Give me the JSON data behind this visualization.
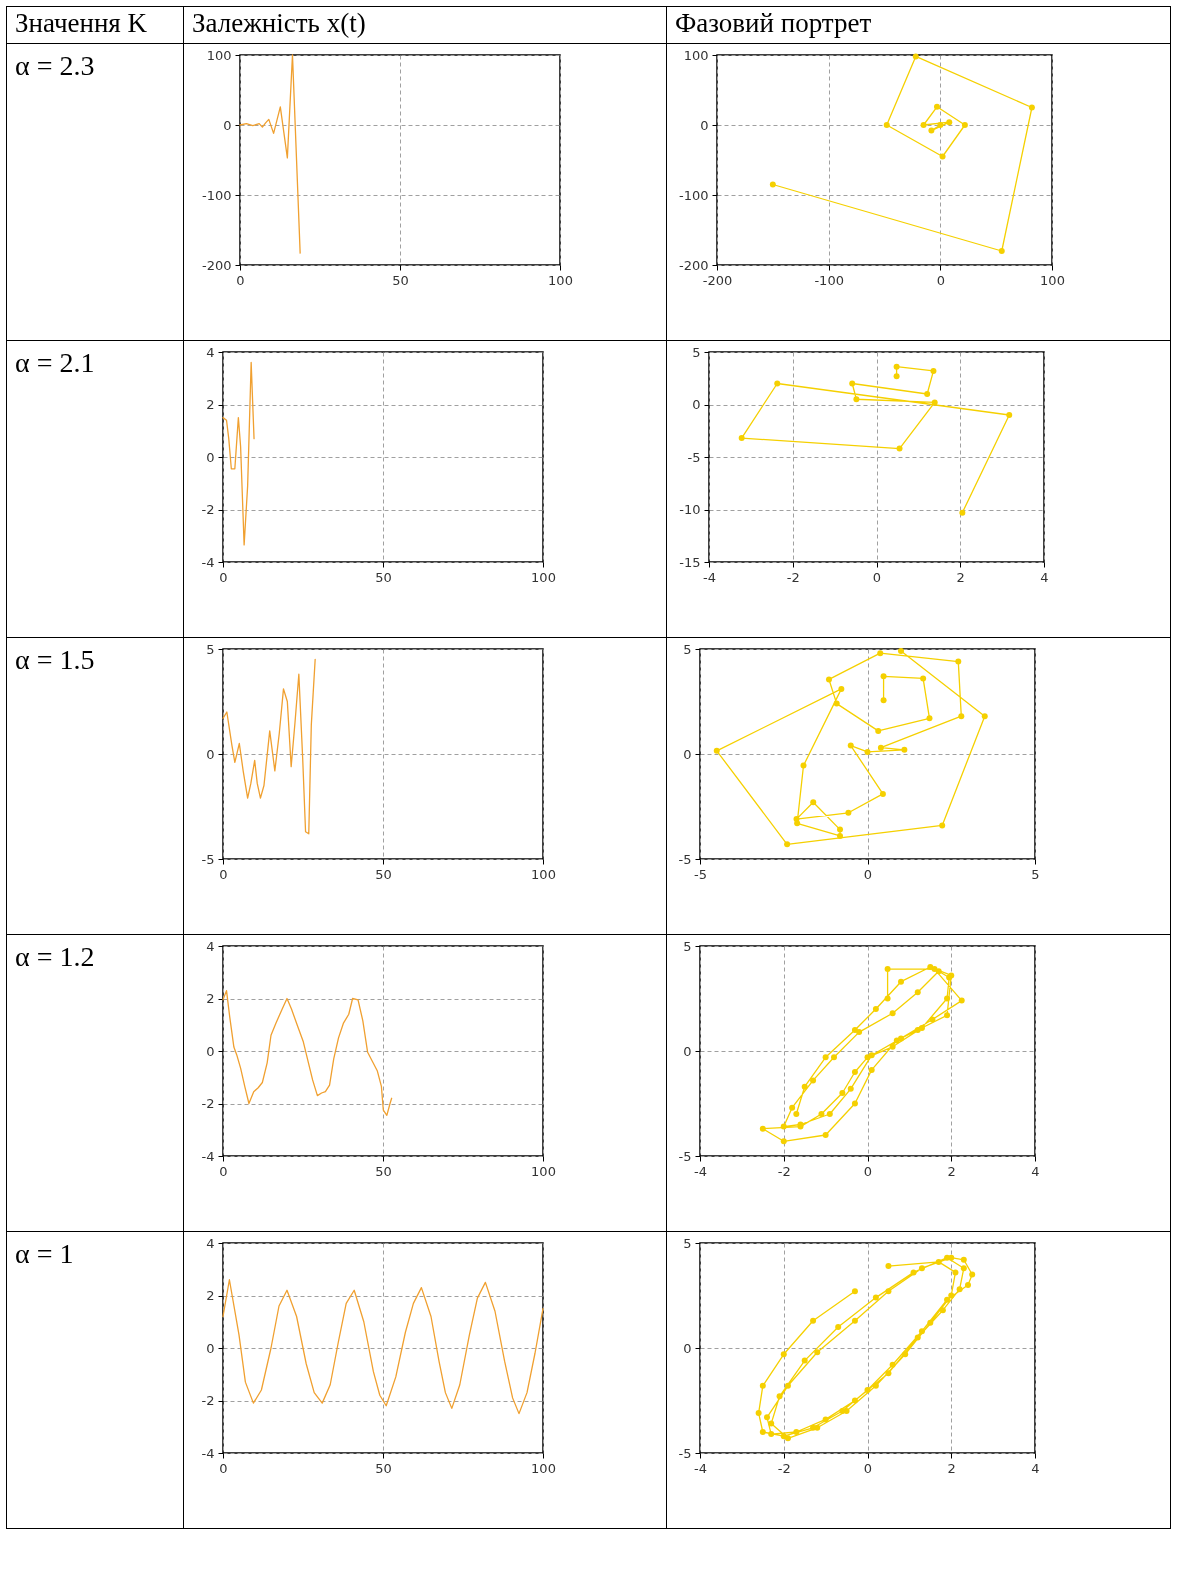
{
  "chart_data": [
    {
      "type": "other",
      "annotations": [
        "Значення K",
        "Залежність x(t)",
        "Фазовий портрет"
      ]
    },
    {
      "type": "other",
      "title": "α = 2.3"
    },
    {
      "type": "line",
      "color": "#f0a030",
      "grid": true,
      "xlim": [
        0,
        100
      ],
      "xticks": [
        0,
        50,
        100
      ],
      "ylim": [
        -200,
        100
      ],
      "yticks": [
        -200,
        -100,
        0,
        100
      ],
      "x": [
        0,
        2,
        4,
        6,
        7,
        8,
        9,
        10.5,
        12.6,
        14.8,
        16.4,
        18.8
      ],
      "values": [
        0,
        2,
        -1,
        2,
        -3,
        3,
        8,
        -12,
        26,
        -47,
        100,
        -183
      ]
    },
    {
      "type": "line",
      "color": "#f5d000",
      "grid": true,
      "marker": "circle",
      "xlim": [
        -200,
        100
      ],
      "xticks": [
        -200,
        -100,
        0,
        100
      ],
      "ylim": [
        -200,
        100
      ],
      "yticks": [
        -200,
        -100,
        0,
        100
      ],
      "x": [
        0,
        -8,
        8,
        -15,
        -3,
        22,
        2,
        -48,
        -22,
        82,
        55,
        -150
      ],
      "values": [
        0,
        -8,
        4,
        0,
        26,
        0,
        -45,
        0,
        98,
        25,
        -180,
        -85
      ]
    },
    {
      "type": "other",
      "title": "α = 2.1"
    },
    {
      "type": "line",
      "color": "#f0a030",
      "grid": true,
      "xlim": [
        0,
        100
      ],
      "xticks": [
        0,
        50,
        100
      ],
      "ylim": [
        -4,
        4
      ],
      "yticks": [
        -4,
        -2,
        0,
        2,
        4
      ],
      "x": [
        0,
        1.1,
        1.8,
        2.6,
        3.7,
        4.8,
        5.5,
        6.6,
        7.7,
        8.8,
        9.7
      ],
      "values": [
        1.5,
        1.4,
        0.7,
        -0.45,
        -0.45,
        1.5,
        0.4,
        -3.35,
        -1.1,
        3.6,
        0.7
      ]
    },
    {
      "type": "line",
      "color": "#f5d000",
      "grid": true,
      "marker": "circle",
      "xlim": [
        -4,
        4
      ],
      "xticks": [
        -4,
        -2,
        0,
        2,
        4
      ],
      "ylim": [
        -15,
        5
      ],
      "yticks": [
        -15,
        -10,
        -5,
        0,
        5
      ],
      "x": [
        0.48,
        0.48,
        1.36,
        1.21,
        -0.58,
        -0.48,
        1.39,
        0.55,
        -3.22,
        -2.37,
        3.17,
        2.05
      ],
      "values": [
        2.7,
        3.6,
        3.2,
        1.0,
        2.0,
        0.5,
        0.2,
        -4.2,
        -3.2,
        2.0,
        -1.0,
        -10.3
      ]
    },
    {
      "type": "other",
      "title": "α = 1.5"
    },
    {
      "type": "line",
      "color": "#f0a030",
      "grid": true,
      "xlim": [
        0,
        100
      ],
      "xticks": [
        0,
        50,
        100
      ],
      "ylim": [
        -5,
        5
      ],
      "yticks": [
        -5,
        0,
        5
      ],
      "x": [
        0,
        1.2,
        2.8,
        3.7,
        5.1,
        6.3,
        7.7,
        8.7,
        9.9,
        10.7,
        11.7,
        12.8,
        14.6,
        16.2,
        17.6,
        18.9,
        20.1,
        21.3,
        22.5,
        23.7,
        24.9,
        25.8,
        26.8,
        27.6,
        28.8
      ],
      "values": [
        1.7,
        2.0,
        0.4,
        -0.4,
        0.5,
        -0.8,
        -2.1,
        -1.4,
        -0.3,
        -1.4,
        -2.1,
        -1.5,
        1.1,
        -0.8,
        1.0,
        3.1,
        2.5,
        -0.6,
        1.5,
        3.8,
        -0.2,
        -3.7,
        -3.8,
        1.4,
        4.5
      ]
    },
    {
      "type": "line",
      "color": "#f5d000",
      "grid": true,
      "marker": "circle",
      "xlim": [
        -5,
        5
      ],
      "xticks": [
        -5,
        0,
        5
      ],
      "ylim": [
        -5,
        5
      ],
      "yticks": [
        -5,
        0,
        5
      ],
      "x": [
        0.48,
        0.48,
        1.66,
        1.85,
        0.32,
        -0.92,
        -1.15,
        0.38,
        2.71,
        2.8,
        0.4,
        1.1,
        0.0,
        -0.5,
        0.46,
        -0.57,
        -2.12,
        -1.62,
        -0.82,
        -0.82,
        -2.1,
        -1.91,
        -0.78,
        -4.5,
        -2.4,
        2.23,
        3.5,
        1.0
      ],
      "values": [
        2.56,
        3.7,
        3.6,
        1.7,
        1.1,
        2.4,
        3.55,
        4.8,
        4.4,
        1.8,
        0.3,
        0.2,
        0.1,
        0.4,
        -1.9,
        -2.8,
        -3.1,
        -2.3,
        -3.6,
        -3.9,
        -3.3,
        -0.55,
        3.1,
        0.15,
        -4.3,
        -3.4,
        1.8,
        4.9
      ]
    },
    {
      "type": "other",
      "title": "α = 1.2"
    },
    {
      "type": "line",
      "color": "#f0a030",
      "grid": true,
      "xlim": [
        0,
        100
      ],
      "xticks": [
        0,
        50,
        100
      ],
      "ylim": [
        -4,
        4
      ],
      "yticks": [
        -4,
        -2,
        0,
        2,
        4
      ],
      "x": [
        0,
        1.1,
        2.1,
        3.4,
        4.3,
        5.5,
        6.8,
        8.1,
        9.6,
        11,
        12.3,
        13.8,
        15,
        16.5,
        18.5,
        20,
        21.4,
        23.3,
        25.1,
        26.7,
        28,
        29.5,
        30.8,
        32,
        33.3,
        34.6,
        36.1,
        37.6,
        39.3,
        40.5,
        42.2,
        43.7,
        45.2,
        46.7,
        48.2,
        49.5,
        50.1,
        51.2,
        52.2,
        52.7
      ],
      "values": [
        1.95,
        2.3,
        1.3,
        0.15,
        -0.15,
        -0.65,
        -1.35,
        -2.0,
        -1.55,
        -1.4,
        -1.2,
        -0.45,
        0.6,
        1.05,
        1.6,
        2.0,
        1.6,
        0.95,
        0.35,
        -0.45,
        -1.1,
        -1.7,
        -1.6,
        -1.55,
        -1.3,
        -0.3,
        0.5,
        1.05,
        1.4,
        2.0,
        1.95,
        1.15,
        -0.05,
        -0.4,
        -0.75,
        -1.35,
        -2.25,
        -2.45,
        -2.0,
        -1.8
      ]
    },
    {
      "type": "line",
      "color": "#f5d000",
      "grid": true,
      "marker": "circle",
      "xlim": [
        -4,
        4
      ],
      "xticks": [
        -4,
        -2,
        0,
        2,
        4
      ],
      "ylim": [
        -5,
        5
      ],
      "yticks": [
        -5,
        0,
        5
      ],
      "x": [
        0.48,
        0.48,
        1.6,
        2.25,
        1.55,
        0.8,
        0.1,
        -0.4,
        -0.9,
        -1.6,
        -2.0,
        -1.8,
        -1.3,
        -0.8,
        -0.2,
        0.6,
        1.2,
        1.7,
        1.95,
        1.9,
        1.3,
        0.6,
        0,
        -0.3,
        -0.6,
        -1.1,
        -1.6,
        -2.5,
        -2.0,
        -1.0,
        -0.3,
        0.1,
        0.7,
        1.2,
        1.9,
        2.0,
        1.5,
        0.8,
        0.2,
        -0.3,
        -1.0,
        -1.5,
        -1.7
      ],
      "values": [
        2.5,
        3.9,
        3.9,
        2.4,
        1.5,
        0.6,
        -0.2,
        -1.8,
        -3.0,
        -3.5,
        -3.6,
        -2.7,
        -1.4,
        -0.3,
        0.9,
        1.8,
        2.8,
        3.8,
        3.5,
        2.5,
        1.1,
        0.2,
        -0.3,
        -1.0,
        -2.0,
        -3.0,
        -3.6,
        -3.7,
        -4.3,
        -4.0,
        -2.5,
        -0.9,
        0.5,
        1.0,
        1.7,
        3.6,
        4.0,
        3.3,
        2.0,
        1.0,
        -0.3,
        -1.7,
        -3.0
      ]
    },
    {
      "type": "other",
      "title": "α = 1"
    },
    {
      "type": "line",
      "color": "#f0a030",
      "grid": true,
      "xlim": [
        0,
        100
      ],
      "xticks": [
        0,
        50,
        100
      ],
      "ylim": [
        -4,
        4
      ],
      "yticks": [
        -4,
        -2,
        0,
        2,
        4
      ],
      "x": [
        0,
        2,
        5,
        7,
        9.5,
        12,
        15,
        17.5,
        20,
        23,
        26,
        28.5,
        31,
        33.5,
        36,
        38.5,
        41,
        44,
        47,
        49,
        51,
        54,
        57,
        59.5,
        62,
        65,
        67.5,
        69.5,
        71.5,
        74,
        77,
        79.5,
        82,
        85,
        88,
        90.5,
        92.5,
        95,
        97.5,
        100
      ],
      "values": [
        1.2,
        2.6,
        0.5,
        -1.3,
        -2.1,
        -1.6,
        0,
        1.6,
        2.2,
        1.2,
        -0.6,
        -1.7,
        -2.1,
        -1.4,
        0.2,
        1.7,
        2.2,
        1.0,
        -0.9,
        -1.8,
        -2.2,
        -1.1,
        0.6,
        1.7,
        2.3,
        1.2,
        -0.5,
        -1.7,
        -2.3,
        -1.4,
        0.5,
        1.9,
        2.5,
        1.4,
        -0.5,
        -1.9,
        -2.5,
        -1.7,
        -0.2,
        1.5
      ]
    },
    {
      "type": "line",
      "color": "#f5d000",
      "grid": true,
      "marker": "circle",
      "xlim": [
        -4,
        4
      ],
      "xticks": [
        -4,
        -2,
        0,
        2,
        4
      ],
      "ylim": [
        -5,
        5
      ],
      "yticks": [
        -5,
        0,
        5
      ],
      "x": [
        -0.3,
        -1.3,
        -2.0,
        -2.5,
        -2.6,
        -2.5,
        -2.0,
        -1.3,
        -0.6,
        0,
        0.6,
        1.3,
        1.9,
        2.4,
        2.5,
        2.3,
        2.0,
        1.3,
        0.5,
        -0.3,
        -1.2,
        -1.9,
        -2.4,
        -2.3,
        -1.7,
        -1.0,
        -0.3,
        0.5,
        1.2,
        1.8,
        2.2,
        2.3,
        1.9,
        1.1,
        0.2,
        -0.7,
        -1.5,
        -2.1,
        -2.3,
        -1.9,
        -1.2,
        -0.5,
        0.2,
        0.9,
        1.5,
        2.0,
        2.1,
        1.7,
        0.5
      ],
      "values": [
        2.7,
        1.3,
        -0.3,
        -1.8,
        -3.1,
        -4.0,
        -4.2,
        -3.8,
        -3.0,
        -2.0,
        -0.8,
        0.8,
        2.3,
        3.0,
        3.5,
        4.2,
        4.3,
        3.8,
        2.7,
        1.3,
        -0.2,
        -1.8,
        -3.3,
        -4.1,
        -4.0,
        -3.4,
        -2.5,
        -1.2,
        0.5,
        1.8,
        2.8,
        3.8,
        4.3,
        3.6,
        2.4,
        1.0,
        -0.6,
        -2.3,
        -3.6,
        -4.3,
        -3.8,
        -3.0,
        -1.8,
        -0.3,
        1.2,
        2.5,
        3.6,
        4.1,
        3.9
      ]
    }
  ]
}
